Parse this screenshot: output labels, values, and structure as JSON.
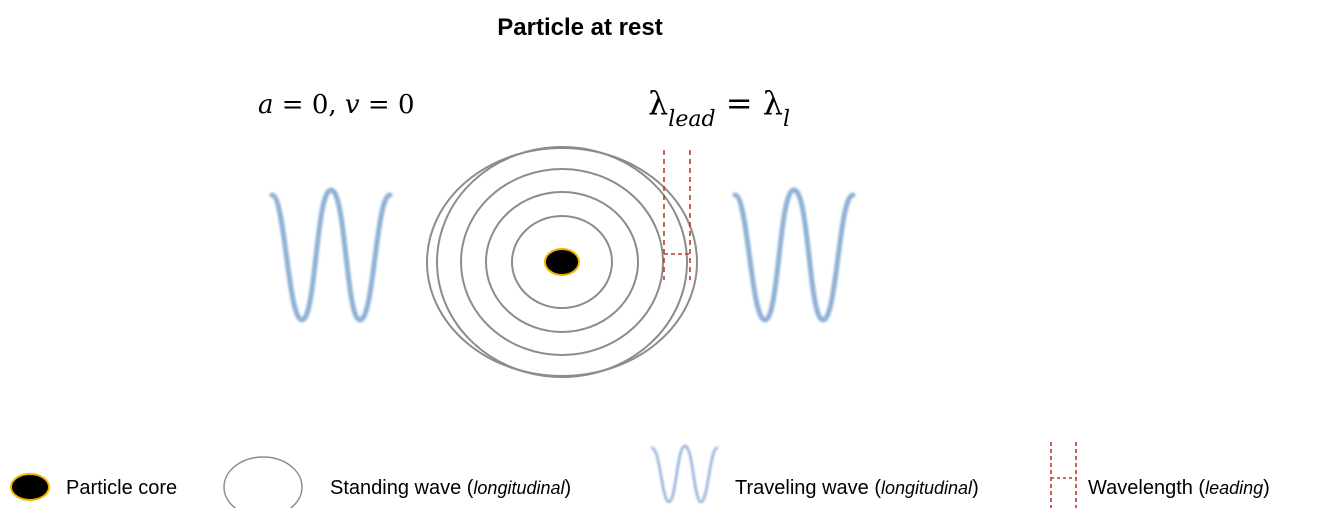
{
  "title": "Particle at rest",
  "motion_state": {
    "a_symbol": "a",
    "equals": "=",
    "a_value": "0,",
    "v_symbol": "v",
    "v_value": "0"
  },
  "wavelength_relation": {
    "lambda": "λ",
    "lead_subscript": "lead",
    "equals": "=",
    "l_subscript": "l"
  },
  "legend": {
    "particle_core": "Particle core",
    "standing_wave_prefix": "Standing wave (",
    "standing_wave_italic": "longitudinal",
    "standing_wave_suffix": ")",
    "traveling_wave_prefix": "Traveling wave (",
    "traveling_wave_italic": "longitudinal",
    "traveling_wave_suffix": ")",
    "wavelength_prefix": "Wavelength (",
    "wavelength_italic": "leading",
    "wavelength_suffix": ")"
  },
  "colors": {
    "core_fill": "#000000",
    "core_outline": "#f0b400",
    "standing_wave_ring": "#8c8c8c",
    "traveling_wave": "#8fb1d6",
    "wavelength_marker": "#c0392b"
  },
  "standing_wave_ring_count": 5
}
